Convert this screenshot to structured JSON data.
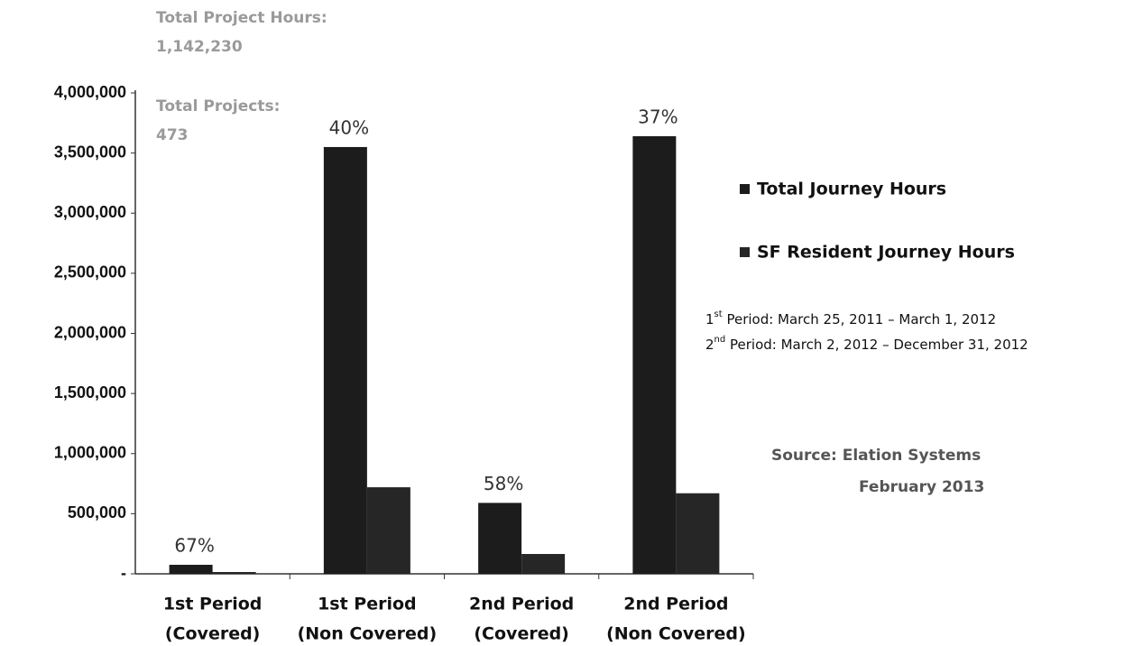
{
  "chart_data": {
    "type": "bar",
    "total_hours_label": "Total Project Hours:",
    "total_hours": "1,142,230",
    "total_projects_label": "Total Projects:",
    "total_projects": "473",
    "categories": [
      [
        "1st Period",
        "(Covered)"
      ],
      [
        "1st Period",
        "(Non Covered)"
      ],
      [
        "2nd Period",
        "(Covered)"
      ],
      [
        "2nd Period",
        "(Non Covered)"
      ]
    ],
    "annotations": [
      "67%",
      "40%",
      "58%",
      "37%"
    ],
    "series": [
      {
        "name": "Total Journey Hours",
        "color": "#1c1c1c",
        "values": [
          75000,
          3550000,
          590000,
          3640000
        ]
      },
      {
        "name": "SF Resident Journey Hours",
        "color": "#262626",
        "values": [
          15000,
          720000,
          165000,
          670000
        ]
      }
    ],
    "ylim": [
      0,
      4000000
    ],
    "yticks": [
      {
        "value": 0,
        "label": "-"
      },
      {
        "value": 500000,
        "label": "500,000"
      },
      {
        "value": 1000000,
        "label": "1,000,000"
      },
      {
        "value": 1500000,
        "label": "1,500,000"
      },
      {
        "value": 2000000,
        "label": "2,000,000"
      },
      {
        "value": 2500000,
        "label": "2,500,000"
      },
      {
        "value": 3000000,
        "label": "3,000,000"
      },
      {
        "value": 3500000,
        "label": "3,500,000"
      },
      {
        "value": 4000000,
        "label": "4,000,000"
      }
    ],
    "notes": [
      {
        "number": "1",
        "suffix": "st",
        "text": " Period: March 25, 2011 – March 1, 2012"
      },
      {
        "number": "2",
        "suffix": "nd",
        "text": " Period: March 2, 2012 – December 31, 2012"
      }
    ],
    "source": [
      "Source:  Elation Systems",
      "February 2013"
    ]
  }
}
